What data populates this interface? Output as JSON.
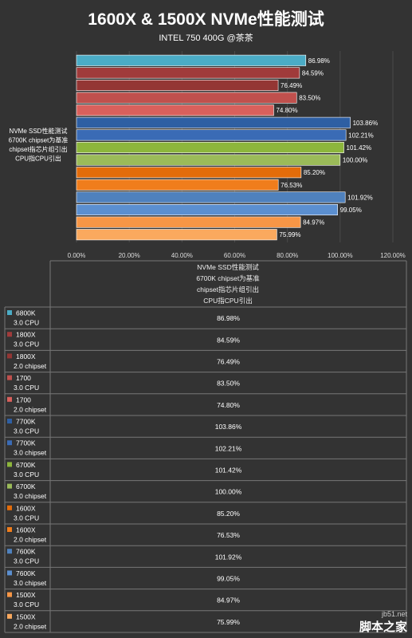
{
  "title": "1600X & 1500X NVMe性能测试",
  "subtitle": "INTEL 750 400G @茶茶",
  "watermark": {
    "site": "jb51.net",
    "brand": "脚本之家"
  },
  "chart_data": {
    "type": "bar",
    "orientation": "horizontal",
    "category_label_lines": [
      "NVMe SSD性能测试",
      "6700K chipset为基准",
      "chipset指芯片组引出",
      "CPU指CPU引出"
    ],
    "xlim": [
      0,
      120
    ],
    "x_ticks": [
      "0.00%",
      "20.00%",
      "40.00%",
      "60.00%",
      "80.00%",
      "100.00%",
      "120.00%"
    ],
    "grid": true,
    "legend": "table-below",
    "series": [
      {
        "name_line1": "6800K",
        "name_line2": "3.0 CPU",
        "value": 86.98,
        "label": "86.98%",
        "color": "#4BACC6"
      },
      {
        "name_line1": "1800X",
        "name_line2": "3.0 CPU",
        "value": 84.59,
        "label": "84.59%",
        "color": "#A03B3B"
      },
      {
        "name_line1": "1800X",
        "name_line2": "2.0 chipset",
        "value": 76.49,
        "label": "76.49%",
        "color": "#943634"
      },
      {
        "name_line1": "1700",
        "name_line2": "3.0 CPU",
        "value": 83.5,
        "label": "83.50%",
        "color": "#C0504D"
      },
      {
        "name_line1": "1700",
        "name_line2": "2.0 chipset",
        "value": 74.8,
        "label": "74.80%",
        "color": "#D9605C"
      },
      {
        "name_line1": "7700K",
        "name_line2": "3.0 CPU",
        "value": 103.86,
        "label": "103.86%",
        "color": "#2E5FA3"
      },
      {
        "name_line1": "7700K",
        "name_line2": "3.0 chipset",
        "value": 102.21,
        "label": "102.21%",
        "color": "#3A6BB5"
      },
      {
        "name_line1": "6700K",
        "name_line2": "3.0 CPU",
        "value": 101.42,
        "label": "101.42%",
        "color": "#8DB63C"
      },
      {
        "name_line1": "6700K",
        "name_line2": "3.0 chipset",
        "value": 100.0,
        "label": "100.00%",
        "color": "#9BBB59"
      },
      {
        "name_line1": "1600X",
        "name_line2": "3.0 CPU",
        "value": 85.2,
        "label": "85.20%",
        "color": "#E36C0A"
      },
      {
        "name_line1": "1600X",
        "name_line2": "2.0 chipset",
        "value": 76.53,
        "label": "76.53%",
        "color": "#F07D1C"
      },
      {
        "name_line1": "7600K",
        "name_line2": "3.0 CPU",
        "value": 101.92,
        "label": "101.92%",
        "color": "#4F81BD"
      },
      {
        "name_line1": "7600K",
        "name_line2": "3.0 chipset",
        "value": 99.05,
        "label": "99.05%",
        "color": "#5B8FD0"
      },
      {
        "name_line1": "1500X",
        "name_line2": "3.0 CPU",
        "value": 84.97,
        "label": "84.97%",
        "color": "#F79646"
      },
      {
        "name_line1": "1500X",
        "name_line2": "2.0 chipset",
        "value": 75.99,
        "label": "75.99%",
        "color": "#FAA95E"
      }
    ]
  }
}
